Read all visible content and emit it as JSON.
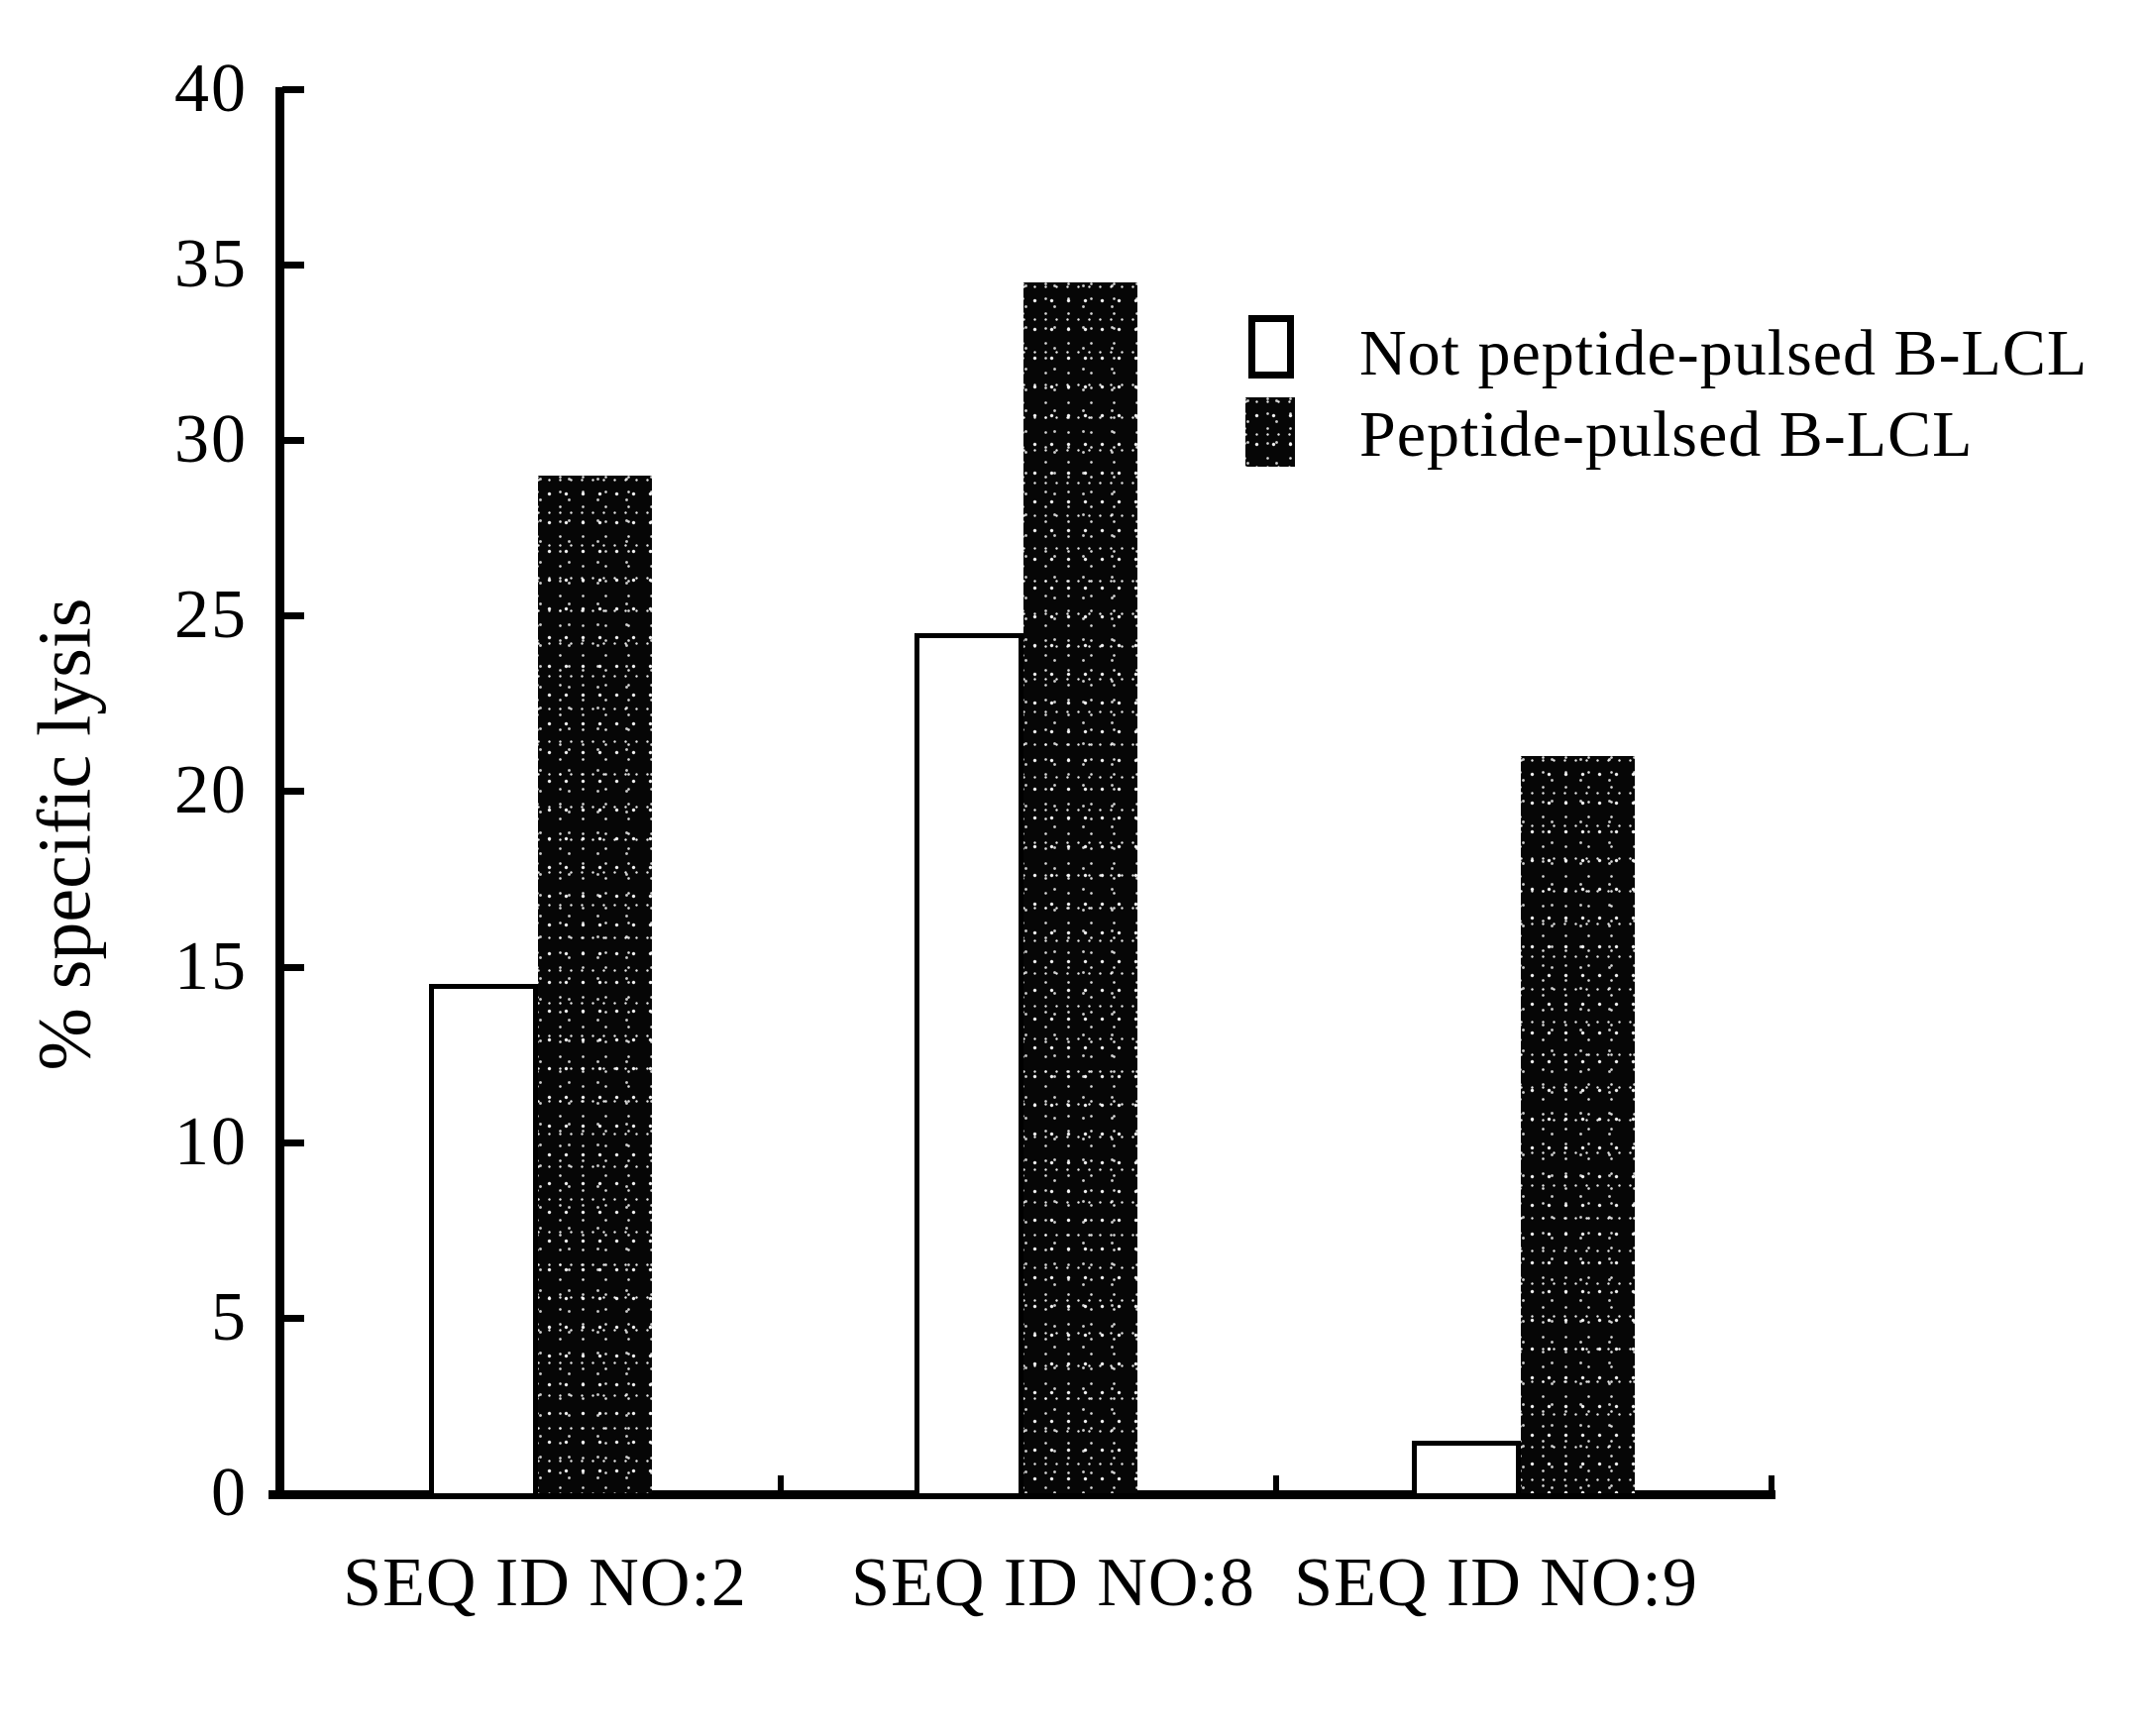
{
  "chart_data": {
    "type": "bar",
    "title": "",
    "ylabel": "% specific lysis",
    "xlabel": "",
    "categories": [
      "SEQ ID NO:2",
      "SEQ ID NO:8",
      "SEQ ID NO:9"
    ],
    "series": [
      {
        "name": "Not peptide-pulsed B-LCL",
        "fill": "white-outline",
        "values": [
          14.5,
          24.5,
          1.5
        ]
      },
      {
        "name": "Peptide-pulsed B-LCL",
        "fill": "black-stipple",
        "values": [
          29,
          34.5,
          21
        ]
      }
    ],
    "ylim": [
      0,
      40
    ],
    "yticks": [
      0,
      5,
      10,
      15,
      20,
      25,
      30,
      35,
      40
    ],
    "grid": false,
    "legend_position": "upper-right",
    "axis_color": "#000000",
    "background_color": "#ffffff"
  }
}
